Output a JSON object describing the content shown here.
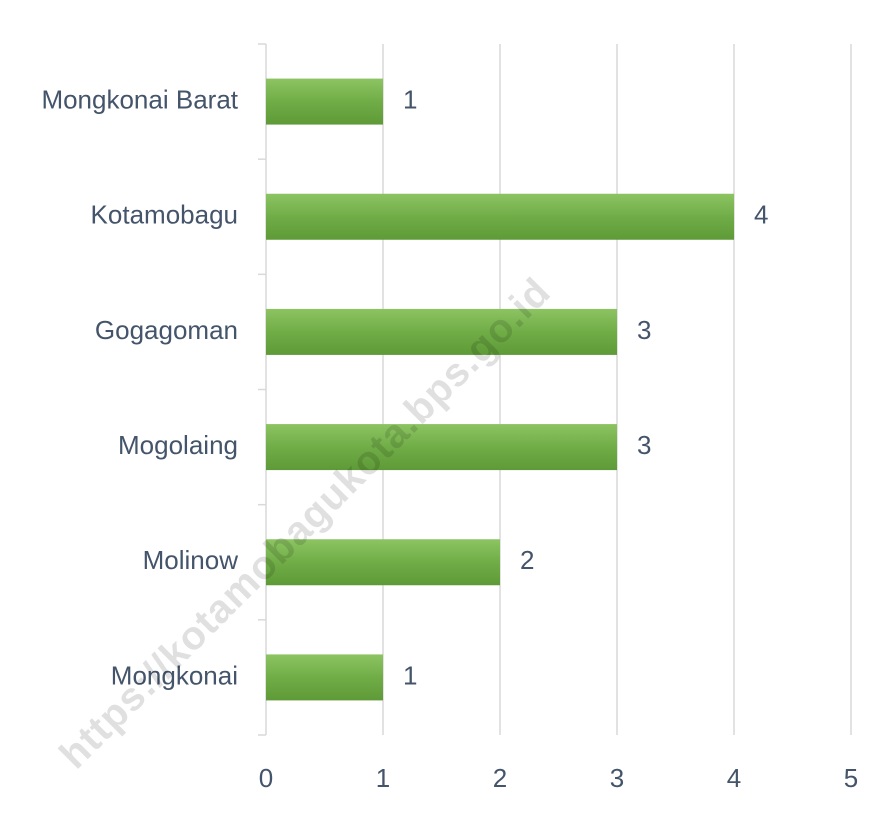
{
  "chart_data": {
    "type": "barh",
    "categories": [
      "Mongkonai Barat",
      "Kotamobagu",
      "Gogagoman",
      "Mogolaing",
      "Molinow",
      "Mongkonai"
    ],
    "values": [
      1,
      4,
      3,
      3,
      2,
      1
    ],
    "color": "#70ad47",
    "xlim": [
      0,
      5
    ],
    "xticks": [
      0,
      1,
      2,
      3,
      4,
      5
    ],
    "grid": true,
    "watermark": "https://kotamobagukota.bps.go.id"
  }
}
